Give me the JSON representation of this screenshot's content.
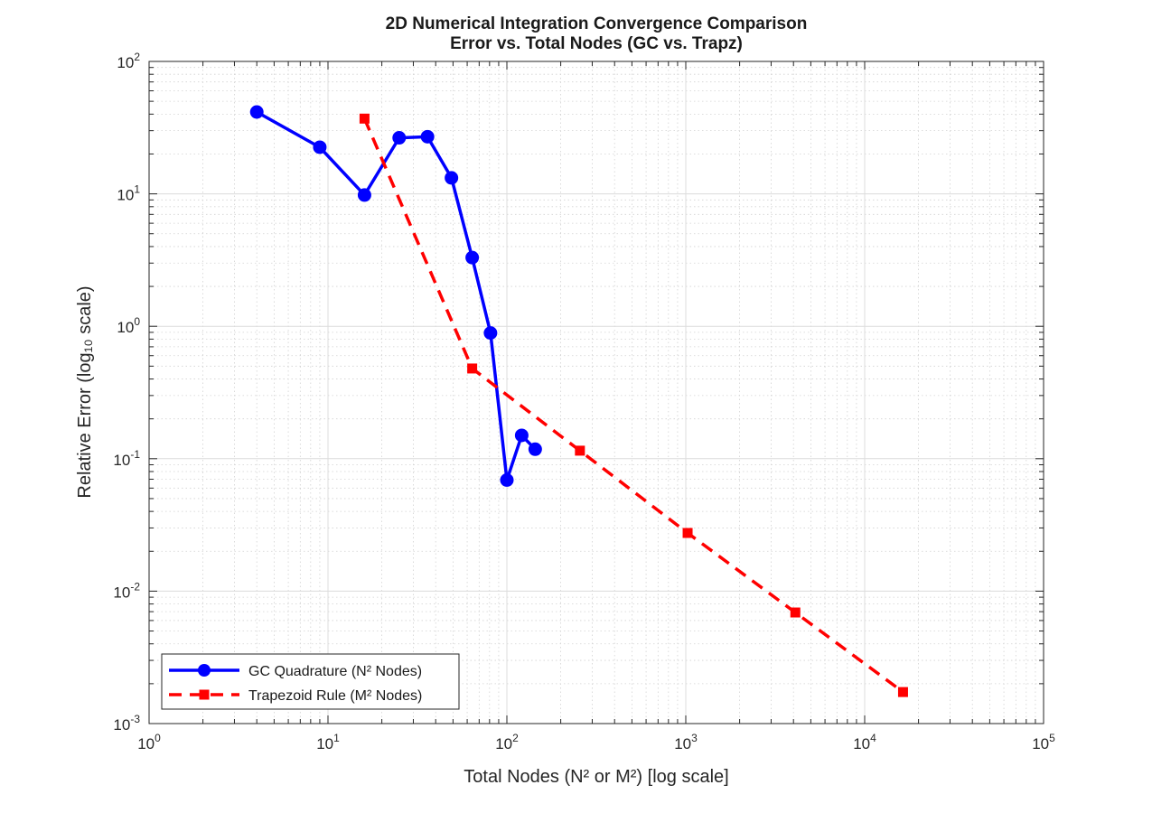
{
  "chart_data": {
    "type": "line",
    "title": [
      "2D Numerical Integration Convergence Comparison",
      "Error vs. Total Nodes (GC vs. Trapz)"
    ],
    "xlabel": "Total Nodes (N² or M²) [log scale]",
    "ylabel": "Relative Error (log₁₀ scale)",
    "xscale": "log",
    "yscale": "log",
    "xlim": [
      1,
      100000
    ],
    "ylim": [
      0.001,
      100
    ],
    "grid": true,
    "minor_grid": true,
    "legend_position": "bottom-left",
    "x_ticks": [
      {
        "value": 1,
        "base": "10",
        "exp": "0"
      },
      {
        "value": 10,
        "base": "10",
        "exp": "1"
      },
      {
        "value": 100,
        "base": "10",
        "exp": "2"
      },
      {
        "value": 1000,
        "base": "10",
        "exp": "3"
      },
      {
        "value": 10000,
        "base": "10",
        "exp": "4"
      },
      {
        "value": 100000,
        "base": "10",
        "exp": "5"
      }
    ],
    "y_ticks": [
      {
        "value": 0.001,
        "base": "10",
        "exp": "-3"
      },
      {
        "value": 0.01,
        "base": "10",
        "exp": "-2"
      },
      {
        "value": 0.1,
        "base": "10",
        "exp": "-1"
      },
      {
        "value": 1,
        "base": "10",
        "exp": "0"
      },
      {
        "value": 10,
        "base": "10",
        "exp": "1"
      },
      {
        "value": 100,
        "base": "10",
        "exp": "2"
      }
    ],
    "series": [
      {
        "name": "GC Quadrature (N² Nodes)",
        "color": "#0000ff",
        "line_style": "solid",
        "marker": "circle",
        "x": [
          4,
          9,
          16,
          25,
          36,
          49,
          64,
          81,
          100,
          121,
          144
        ],
        "y": [
          41.5,
          22.5,
          9.8,
          26.5,
          27,
          13.2,
          3.3,
          0.89,
          0.069,
          0.15,
          0.118
        ]
      },
      {
        "name": "Trapezoid Rule (M² Nodes)",
        "color": "#ff0000",
        "line_style": "dashed",
        "marker": "square",
        "x": [
          16,
          64,
          256,
          1024,
          4096,
          16384
        ],
        "y": [
          37,
          0.48,
          0.115,
          0.0275,
          0.0069,
          0.00173
        ]
      }
    ]
  }
}
